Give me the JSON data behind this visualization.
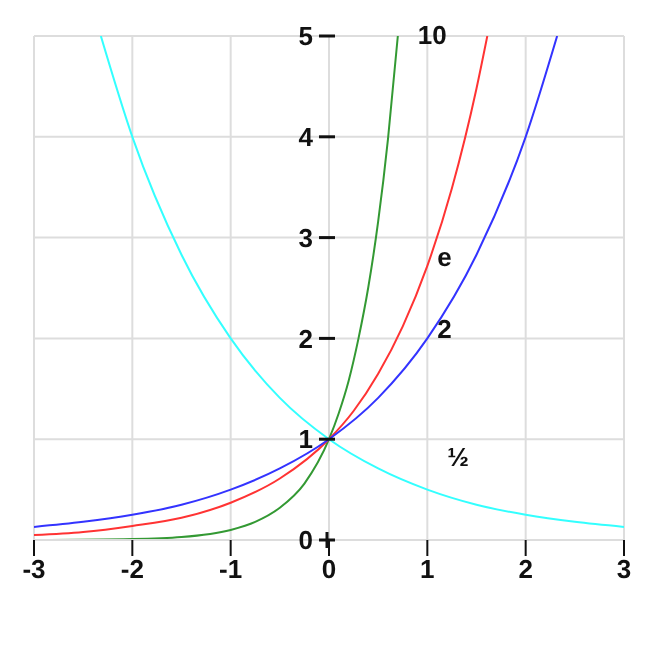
{
  "chart_data": {
    "type": "line",
    "xlim": [
      -3,
      3
    ],
    "ylim": [
      0,
      5
    ],
    "xticks": [
      -3,
      -2,
      -1,
      0,
      1,
      2,
      3
    ],
    "yticks": [
      0,
      1,
      2,
      3,
      4,
      5
    ],
    "grid": true,
    "legend": false,
    "marker": "none",
    "line_style": "solid",
    "series": [
      {
        "name": "10",
        "color": "#339933",
        "x": [
          -3,
          -2,
          -1.5,
          -1,
          -0.75,
          -0.5,
          -0.25,
          0,
          0.1,
          0.2,
          0.3,
          0.4,
          0.5,
          0.6,
          0.7
        ],
        "values": [
          0,
          0.01,
          0.03,
          0.1,
          0.18,
          0.32,
          0.56,
          1,
          1.26,
          1.58,
          2,
          2.51,
          3.16,
          3.98,
          5
        ]
      },
      {
        "name": "e",
        "color": "#ff3333",
        "x": [
          -3,
          -2.5,
          -2,
          -1.5,
          -1,
          -0.5,
          0,
          0.25,
          0.5,
          0.75,
          1,
          1.25,
          1.5,
          1.61
        ],
        "values": [
          0.05,
          0.08,
          0.14,
          0.22,
          0.37,
          0.61,
          1,
          1.28,
          1.65,
          2.12,
          2.72,
          3.49,
          4.48,
          5
        ]
      },
      {
        "name": "2",
        "color": "#3333ff",
        "x": [
          -3,
          -2.5,
          -2,
          -1.5,
          -1,
          -0.5,
          0,
          0.5,
          1,
          1.5,
          2,
          2.32
        ],
        "values": [
          0.13,
          0.18,
          0.25,
          0.35,
          0.5,
          0.71,
          1,
          1.41,
          2,
          2.83,
          4,
          5
        ]
      },
      {
        "name": "½",
        "color": "#33ffff",
        "x": [
          -2.32,
          -2,
          -1.5,
          -1,
          -0.5,
          0,
          0.5,
          1,
          1.5,
          2,
          2.5,
          3
        ],
        "values": [
          5,
          4,
          2.83,
          2,
          1.41,
          1,
          0.71,
          0.5,
          0.35,
          0.25,
          0.18,
          0.13
        ]
      }
    ]
  }
}
